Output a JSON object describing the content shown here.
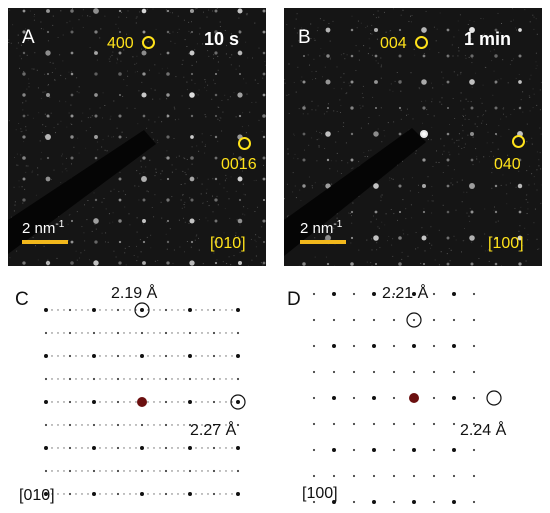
{
  "panels": {
    "a": {
      "letter": "A",
      "time": "10 s",
      "spot1": "400",
      "spot2": "0016",
      "scale": "2 nm",
      "scale_exp": "-1",
      "axis": "[010]"
    },
    "b": {
      "letter": "B",
      "time": "1 min",
      "spot1": "004",
      "spot2": "040",
      "scale": "2 nm",
      "scale_exp": "-1",
      "axis": "[100]"
    },
    "c": {
      "letter": "C",
      "d1": "2.19 Å",
      "d2": "2.27 Å",
      "axis": "[010]"
    },
    "d": {
      "letter": "D",
      "d1": "2.21 Å",
      "d2": "2.24 Å",
      "axis": "[100]"
    }
  },
  "colors": {
    "photo_bg": "#151515",
    "annotation": "#ffe21a",
    "scale_bar": "#f2b81c",
    "center_spot": "#6b0f0f"
  }
}
